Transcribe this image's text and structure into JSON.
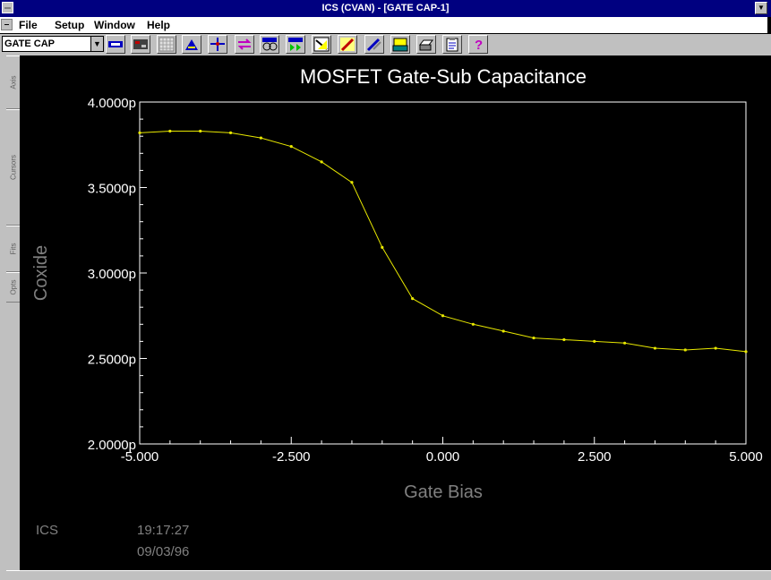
{
  "window": {
    "title": "ICS (CVAN) - [GATE CAP-1]"
  },
  "menu": {
    "file": "File",
    "setup": "Setup",
    "window": "Window",
    "help": "Help"
  },
  "toolbar": {
    "setup_select": "GATE CAP"
  },
  "sidetabs": [
    "Axis",
    "Cursors",
    "Fits",
    "Opts"
  ],
  "footer": {
    "app": "ICS",
    "time": "19:17:27",
    "date": "09/03/96"
  },
  "chart_data": {
    "type": "line",
    "title": "MOSFET Gate-Sub Capacitance",
    "xlabel": "Gate Bias",
    "ylabel": "Coxide",
    "xlim": [
      -5.0,
      5.0
    ],
    "ylim": [
      2e-12,
      4e-12
    ],
    "xticks": [
      "-5.000",
      "-2.500",
      "0.000",
      "2.500",
      "5.000"
    ],
    "yticks": [
      "4.0000p",
      "3.5000p",
      "3.0000p",
      "2.5000p",
      "2.0000p"
    ],
    "line_color": "#e8e800",
    "series": [
      {
        "x": [
          -5.0,
          -4.5,
          -4.0,
          -3.5,
          -3.0,
          -2.5,
          -2.0,
          -1.5,
          -1.0,
          -0.5,
          0.0,
          0.5,
          1.0,
          1.5,
          2.0,
          2.5,
          3.0,
          3.5,
          4.0,
          4.5,
          5.0
        ],
        "values": [
          3.82e-12,
          3.83e-12,
          3.83e-12,
          3.82e-12,
          3.79e-12,
          3.74e-12,
          3.65e-12,
          3.53e-12,
          3.15e-12,
          2.85e-12,
          2.75e-12,
          2.7e-12,
          2.66e-12,
          2.62e-12,
          2.61e-12,
          2.6e-12,
          2.59e-12,
          2.56e-12,
          2.55e-12,
          2.56e-12,
          2.54e-12
        ]
      }
    ]
  }
}
